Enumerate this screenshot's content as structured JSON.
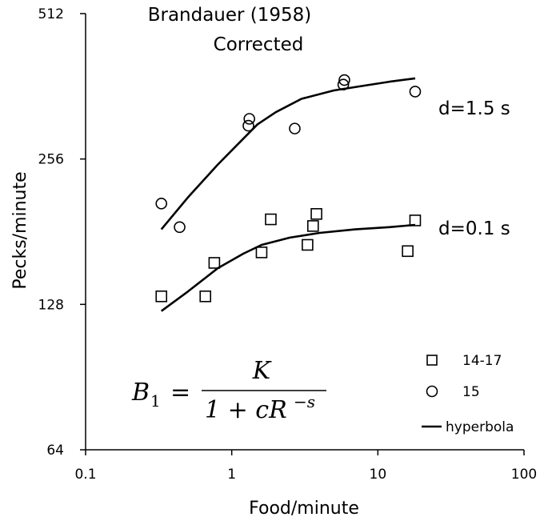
{
  "chart_data": {
    "type": "scatter",
    "title": "Brandauer (1958)",
    "subtitle": "Corrected",
    "xlabel": "Food/minute",
    "ylabel": "Pecks/minute",
    "x_scale": "log10",
    "y_scale": "log2",
    "xlim": [
      0.1,
      100
    ],
    "ylim": [
      64,
      512
    ],
    "x_ticks": [
      "0.1",
      "1",
      "10",
      "100"
    ],
    "y_ticks": [
      "64",
      "128",
      "256",
      "512"
    ],
    "grid": false,
    "legend_position": "bottom-right",
    "formula": {
      "lhs": "B",
      "lhs_sub": "1",
      "eq": "=",
      "numerator": "K",
      "denominator": "1 + cR",
      "exponent": "−s"
    },
    "series": [
      {
        "name": "14-17",
        "marker": "square",
        "points": [
          [
            0.33,
            133
          ],
          [
            0.66,
            133
          ],
          [
            0.76,
            156
          ],
          [
            1.6,
            164
          ],
          [
            1.85,
            192
          ],
          [
            3.3,
            170
          ],
          [
            3.6,
            186
          ],
          [
            3.8,
            197
          ],
          [
            16,
            165
          ],
          [
            18,
            191
          ]
        ]
      },
      {
        "name": "15",
        "marker": "circle",
        "points": [
          [
            0.33,
            207
          ],
          [
            0.44,
            185
          ],
          [
            1.3,
            300
          ],
          [
            1.32,
            310
          ],
          [
            2.7,
            296
          ],
          [
            5.8,
            365
          ],
          [
            5.9,
            373
          ],
          [
            18,
            353
          ]
        ]
      }
    ],
    "curves": [
      {
        "name": "hyperbola",
        "annotation": "d=1.5 s",
        "points": [
          [
            0.33,
            183
          ],
          [
            0.5,
            213
          ],
          [
            0.8,
            249
          ],
          [
            1.2,
            282
          ],
          [
            1.5,
            302
          ],
          [
            2,
            320
          ],
          [
            3,
            341
          ],
          [
            5,
            355
          ],
          [
            8,
            363
          ],
          [
            12,
            370
          ],
          [
            18,
            376
          ]
        ]
      },
      {
        "name": "hyperbola",
        "annotation": "d=0.1 s",
        "points": [
          [
            0.33,
            124
          ],
          [
            0.5,
            136
          ],
          [
            0.8,
            152
          ],
          [
            1.2,
            163
          ],
          [
            1.6,
            170
          ],
          [
            2.5,
            176
          ],
          [
            4,
            180
          ],
          [
            7,
            183
          ],
          [
            12,
            185
          ],
          [
            18,
            187
          ]
        ]
      }
    ]
  }
}
